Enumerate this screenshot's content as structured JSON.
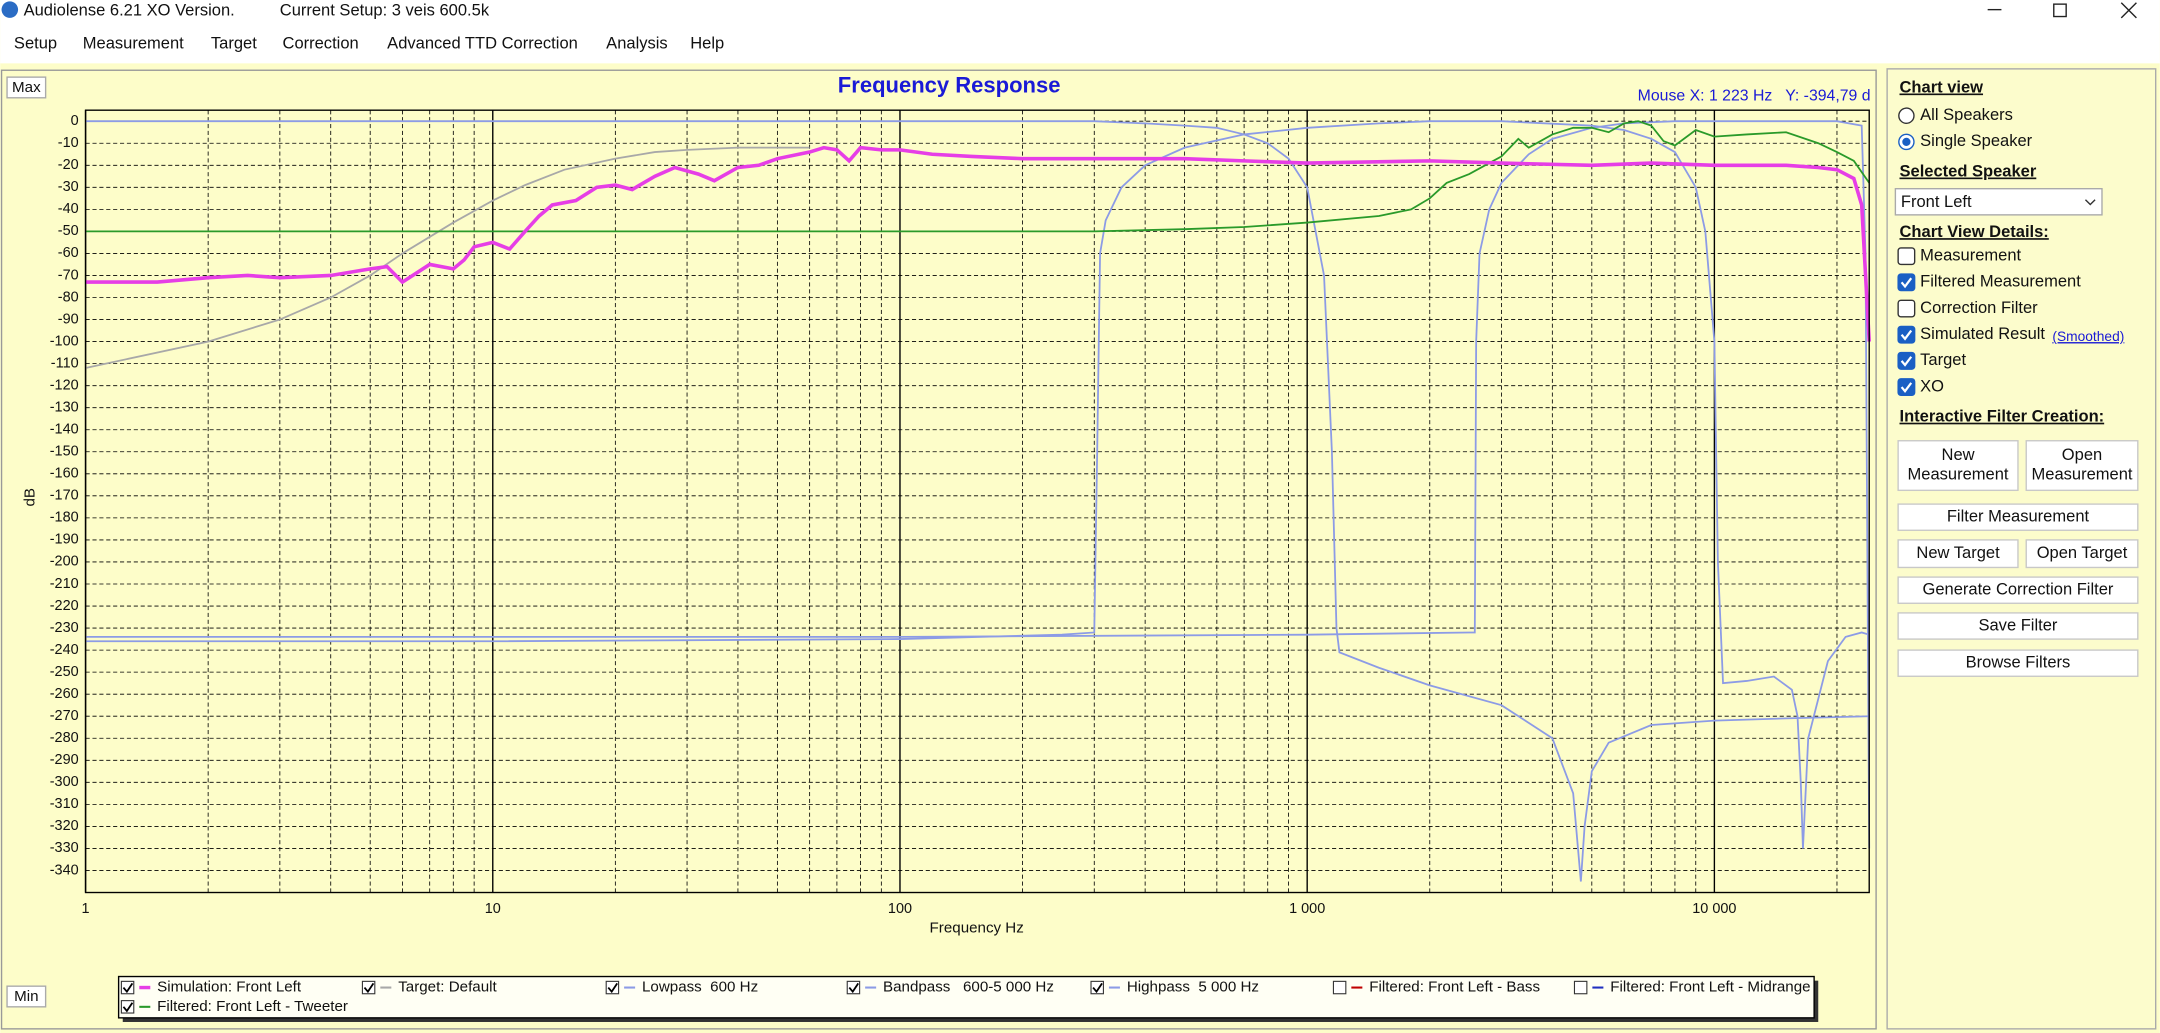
{
  "window": {
    "title": "Audiolense 6.21 XO Version.",
    "setup": "Current Setup: 3 veis 600.5k"
  },
  "menu": [
    "Setup",
    "Measurement",
    "Target",
    "Correction",
    "Advanced TTD Correction",
    "Analysis",
    "Help"
  ],
  "chart_buttons": {
    "max": "Max",
    "min": "Min"
  },
  "mouse_readout": "Mouse X: 1 223 Hz   Y: -394,79 d",
  "chart_data": {
    "type": "line",
    "title": "Frequency Response",
    "x_label": "Frequency Hz",
    "y_label": "dB",
    "xscale": "log",
    "grid": true,
    "xlim": [
      1,
      24000
    ],
    "ylim": [
      -350,
      5
    ],
    "xticks": [
      1,
      10,
      100,
      {
        "value": 1000,
        "label": "1 000"
      },
      {
        "value": 10000,
        "label": "10 000"
      }
    ],
    "xminorticks": [
      2,
      3,
      4,
      5,
      6,
      7,
      8,
      9,
      20,
      30,
      40,
      50,
      60,
      70,
      80,
      90,
      200,
      300,
      400,
      500,
      600,
      700,
      800,
      900,
      2000,
      3000,
      4000,
      5000,
      6000,
      7000,
      8000,
      9000,
      20000
    ],
    "yticks": [
      0,
      -10,
      -20,
      -30,
      -40,
      -50,
      -60,
      -70,
      -80,
      -90,
      -100,
      -110,
      -120,
      -130,
      -140,
      -150,
      -160,
      -170,
      -180,
      -190,
      -200,
      -210,
      -220,
      -230,
      -240,
      -250,
      -260,
      -270,
      -280,
      -290,
      -300,
      -310,
      -320,
      -330,
      -340
    ],
    "series": [
      {
        "name": "Simulation: Front Left",
        "color": "#e63ee6",
        "checked": true,
        "x": [
          1,
          1.5,
          2,
          2.5,
          3,
          4,
          5,
          5.5,
          6,
          7,
          8,
          8.5,
          9,
          10,
          11,
          12,
          13,
          14,
          16,
          18,
          20,
          22,
          25,
          28,
          32,
          35,
          40,
          45,
          50,
          60,
          65,
          70,
          75,
          80,
          90,
          100,
          120,
          150,
          200,
          300,
          500,
          700,
          1000,
          2000,
          3000,
          5000,
          7000,
          10000,
          15000,
          18000,
          20000,
          22000,
          23000,
          24000
        ],
        "values": [
          -73,
          -73,
          -71,
          -70,
          -71,
          -70,
          -67,
          -66,
          -73,
          -65,
          -67,
          -63,
          -57,
          -55,
          -58,
          -50,
          -43,
          -38,
          -36,
          -30,
          -29,
          -31,
          -25,
          -21,
          -24,
          -27,
          -21,
          -20,
          -17,
          -14,
          -12,
          -13,
          -18,
          -12,
          -13,
          -13,
          -15,
          -16,
          -17,
          -17,
          -17,
          -18,
          -19,
          -18,
          -19,
          -20,
          -19,
          -20,
          -20,
          -21,
          -22,
          -26,
          -38,
          -100
        ]
      },
      {
        "name": "Target: Default",
        "color": "#a8a8a8",
        "checked": true,
        "x": [
          1,
          2,
          3,
          4,
          5,
          6,
          8,
          10,
          12,
          15,
          20,
          25,
          30,
          40,
          60
        ],
        "values": [
          -112,
          -100,
          -90,
          -80,
          -70,
          -60,
          -46,
          -36,
          -29,
          -22,
          -17,
          -14,
          -13,
          -12,
          -12
        ]
      },
      {
        "name": "Lowpass  600 Hz",
        "color": "#8c9be6",
        "checked": true,
        "x": [
          1,
          100,
          300,
          400,
          500,
          600,
          700,
          800,
          900,
          1000,
          1100,
          1150,
          1180,
          1200,
          1500,
          2000,
          3000,
          4000,
          4500,
          4700,
          4800,
          5000,
          5500,
          7000,
          10000,
          15000,
          24000
        ],
        "values": [
          0,
          0,
          0,
          -1,
          -2,
          -3,
          -6,
          -10,
          -17,
          -30,
          -70,
          -150,
          -230,
          -241,
          -248,
          -256,
          -265,
          -280,
          -305,
          -345,
          -320,
          -295,
          -282,
          -274,
          -272,
          -271,
          -270
        ]
      },
      {
        "name": "Bandpass   600-5 000 Hz",
        "color": "#8c9be6",
        "checked": true,
        "x": [
          1,
          10,
          100,
          250,
          300,
          305,
          310,
          320,
          350,
          400,
          500,
          700,
          1000,
          1500,
          2000,
          3000,
          5000,
          6000,
          7000,
          8000,
          9000,
          9500,
          10000,
          10200,
          10500,
          12000,
          14000,
          15500,
          16000,
          16300,
          16500,
          17000,
          19000,
          21000,
          23000,
          24000
        ],
        "values": [
          -236,
          -236,
          -235,
          -233,
          -232,
          -150,
          -60,
          -45,
          -30,
          -20,
          -12,
          -6,
          -3,
          -1,
          0,
          0,
          -2,
          -4,
          -8,
          -14,
          -30,
          -50,
          -100,
          -200,
          -255,
          -254,
          -252,
          -258,
          -270,
          -300,
          -330,
          -280,
          -245,
          -234,
          -232,
          -233
        ]
      },
      {
        "name": "Highpass  5 000 Hz",
        "color": "#8c9be6",
        "checked": true,
        "x": [
          1,
          100,
          1000,
          2500,
          2580,
          2600,
          2650,
          2800,
          3000,
          3500,
          4000,
          5000,
          6000,
          8000,
          10000,
          15000,
          20000,
          23000,
          23500,
          24000
        ],
        "values": [
          -234,
          -234,
          -233,
          -232,
          -232,
          -100,
          -60,
          -40,
          -28,
          -15,
          -8,
          -3,
          -1,
          0,
          0,
          0,
          0,
          -2,
          -60,
          -330
        ]
      },
      {
        "name": "Filtered: Front Left - Bass",
        "color": "#c00000",
        "checked": false,
        "x": [],
        "values": []
      },
      {
        "name": "Filtered: Front Left - Midrange",
        "color": "#2030c0",
        "checked": false,
        "x": [],
        "values": []
      },
      {
        "name": "Filtered: Front Left - Tweeter",
        "color": "#2a9a2a",
        "checked": true,
        "x": [
          1,
          10,
          100,
          300,
          500,
          700,
          1000,
          1500,
          1800,
          2000,
          2200,
          2500,
          3000,
          3300,
          3500,
          4000,
          4500,
          5000,
          5500,
          6000,
          6500,
          7000,
          7500,
          8000,
          9000,
          10000,
          12000,
          15000,
          18000,
          20000,
          22000,
          24000
        ],
        "values": [
          -50,
          -50,
          -50,
          -50,
          -49,
          -48,
          -46,
          -43,
          -40,
          -35,
          -28,
          -24,
          -16,
          -8,
          -12,
          -6,
          -3,
          -3,
          -5,
          -1,
          0,
          -2,
          -9,
          -11,
          -4,
          -7,
          -6,
          -5,
          -10,
          -14,
          -18,
          -28
        ]
      }
    ]
  },
  "sidebar": {
    "chart_view": {
      "title": "Chart view",
      "options": [
        {
          "label": "All Speakers",
          "selected": false
        },
        {
          "label": "Single Speaker",
          "selected": true
        }
      ]
    },
    "selected_speaker": {
      "title": "Selected Speaker",
      "value": "Front Left"
    },
    "details": {
      "title": "Chart View Details:",
      "smoothed": "(Smoothed)",
      "items": [
        {
          "label": "Measurement",
          "checked": false
        },
        {
          "label": "Filtered Measurement",
          "checked": true
        },
        {
          "label": "Correction Filter",
          "checked": false
        },
        {
          "label": "Simulated Result",
          "checked": true
        },
        {
          "label": "Target",
          "checked": true
        },
        {
          "label": "XO",
          "checked": true
        }
      ]
    },
    "interactive": {
      "title": "Interactive Filter Creation:",
      "buttons": [
        {
          "lines": [
            "New",
            "Measurement"
          ]
        },
        {
          "lines": [
            "Open",
            "Measurement"
          ]
        },
        {
          "lines": [
            "Filter Measurement"
          ]
        },
        {
          "lines": [
            "New Target"
          ]
        },
        {
          "lines": [
            "Open Target"
          ]
        },
        {
          "lines": [
            "Generate Correction Filter"
          ]
        },
        {
          "lines": [
            "Save Filter"
          ]
        },
        {
          "lines": [
            "Browse Filters"
          ]
        }
      ]
    }
  }
}
